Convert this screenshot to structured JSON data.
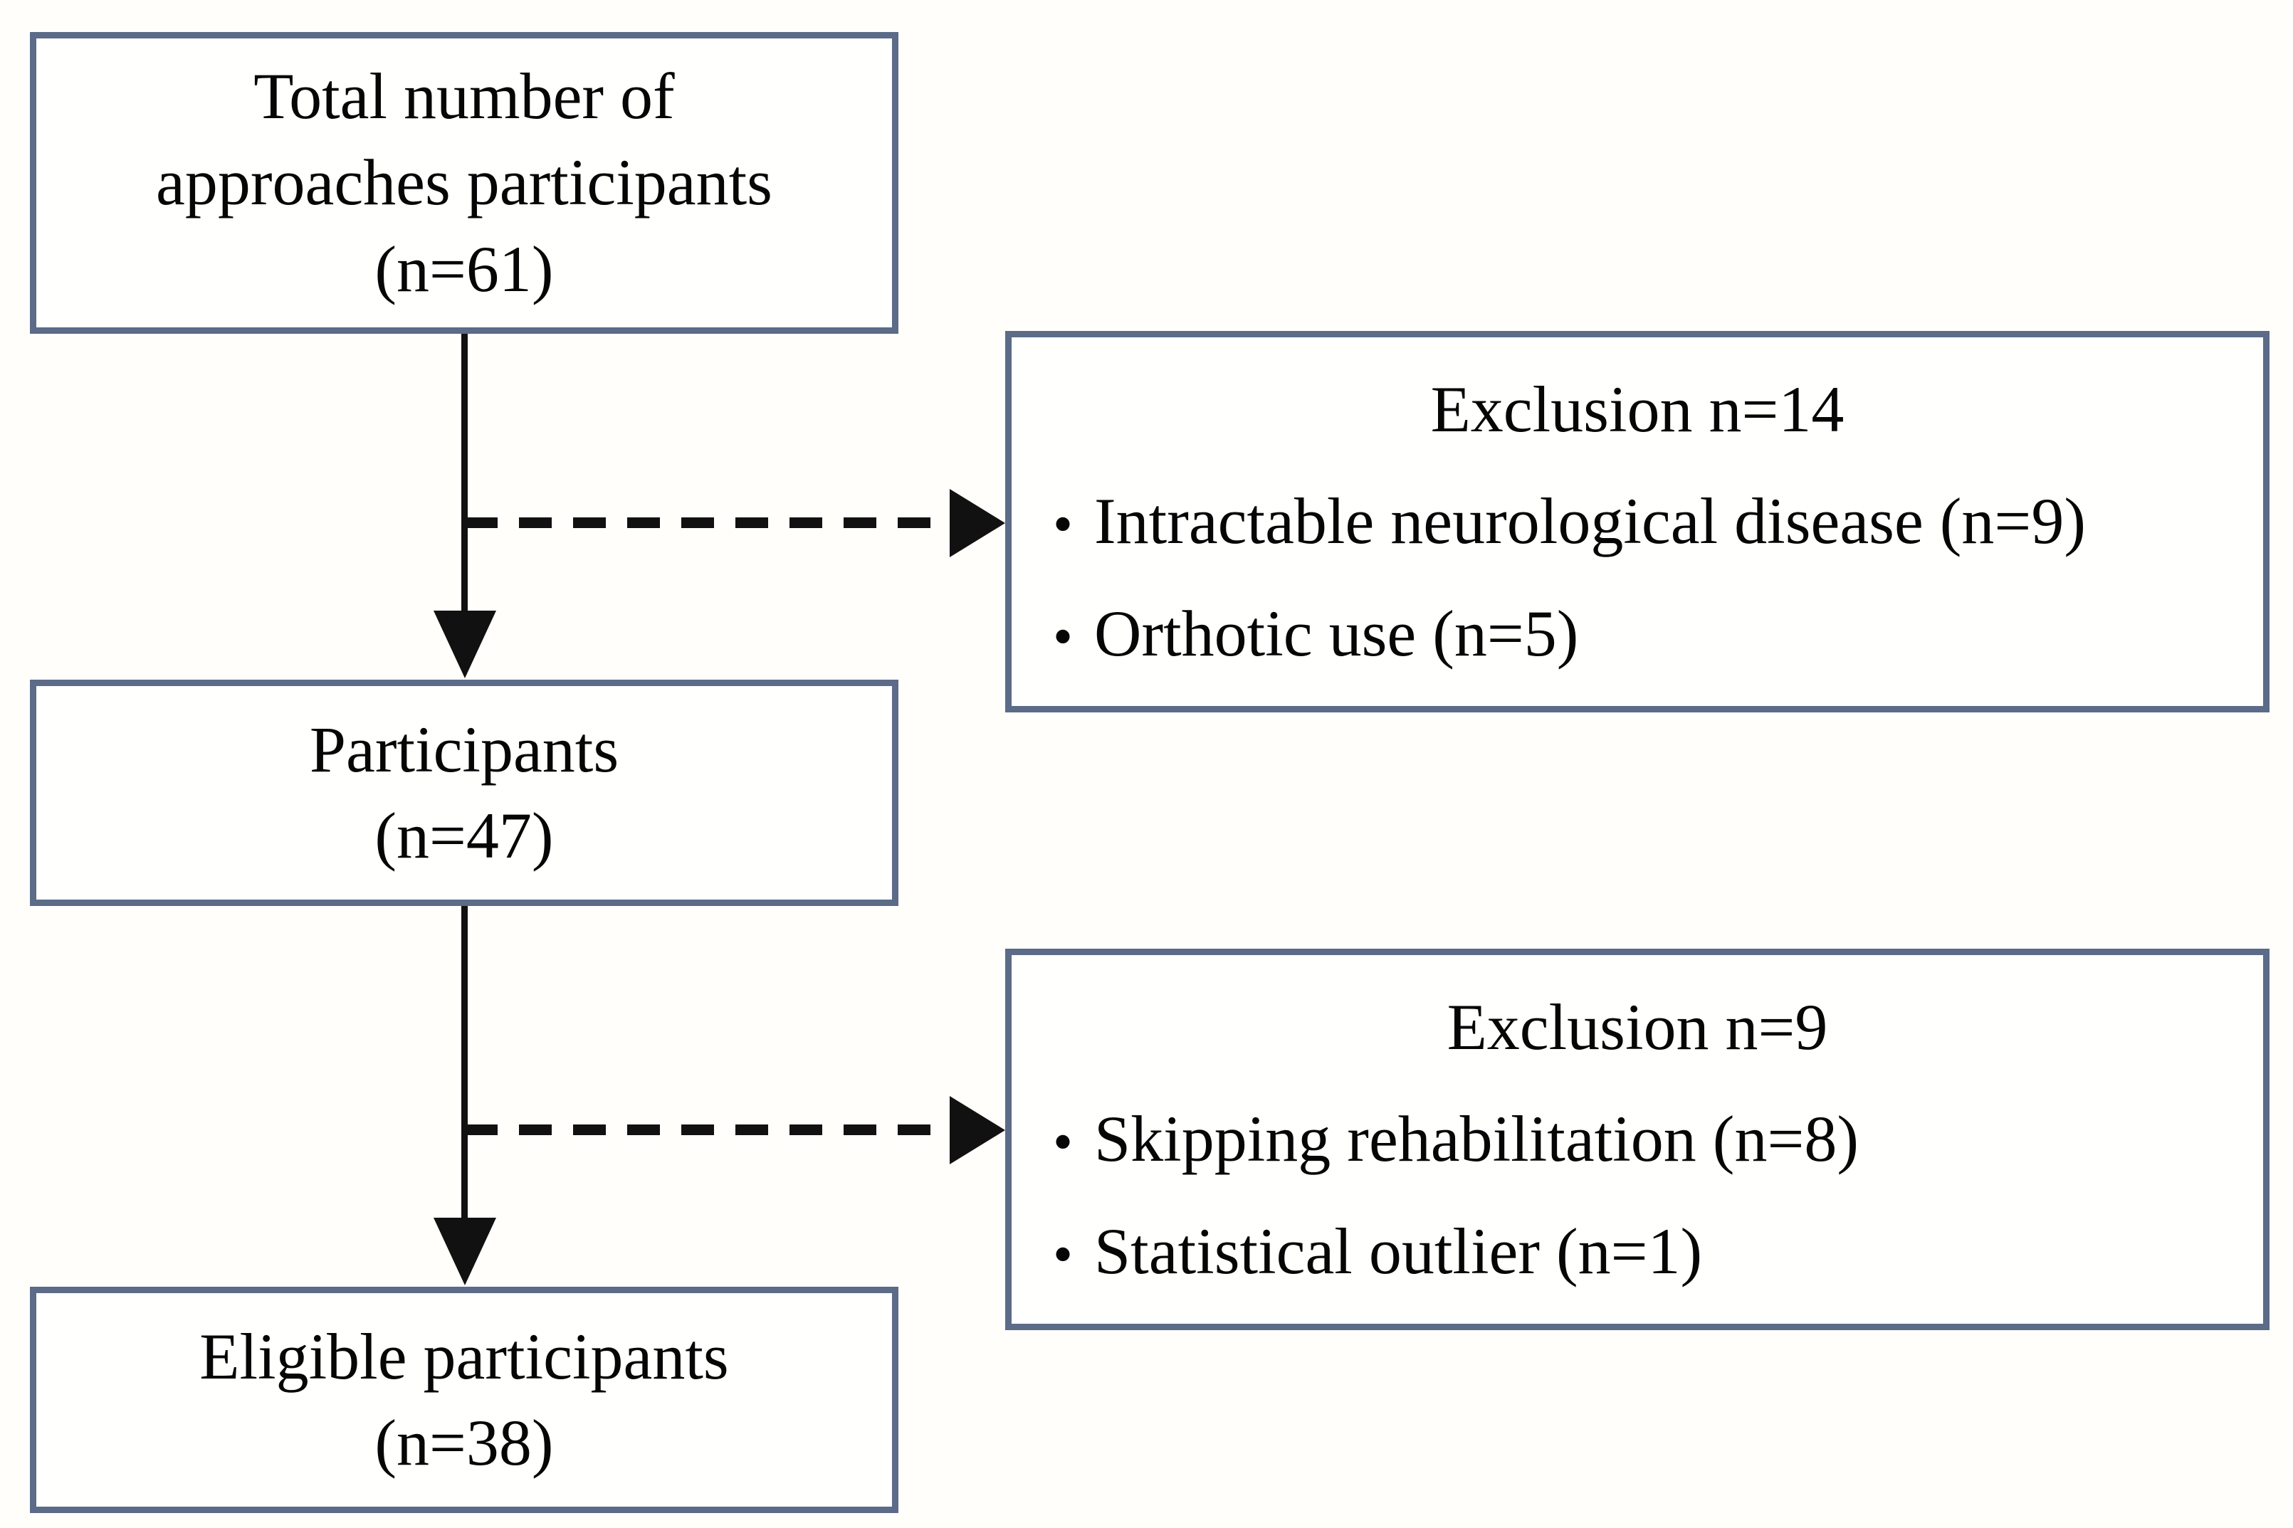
{
  "diagram": {
    "boxes": {
      "total": {
        "lines": [
          "Total number of",
          "approaches participants",
          "(n=61)"
        ]
      },
      "participants": {
        "lines": [
          "Participants",
          "(n=47)"
        ]
      },
      "eligible": {
        "lines": [
          "Eligible participants",
          "(n=38)"
        ]
      },
      "exclusion1": {
        "title": "Exclusion n=14",
        "bullet": "•",
        "items": [
          "Intractable neurological disease (n=9)",
          "Orthotic use (n=5)"
        ]
      },
      "exclusion2": {
        "title": "Exclusion n=9",
        "bullet": "•",
        "items": [
          "Skipping rehabilitation (n=8)",
          "Statistical outlier (n=1)"
        ]
      }
    },
    "colors": {
      "box_border": "#5b6b88",
      "arrow": "#111111",
      "text": "#060606",
      "background": "#fffefb"
    }
  }
}
